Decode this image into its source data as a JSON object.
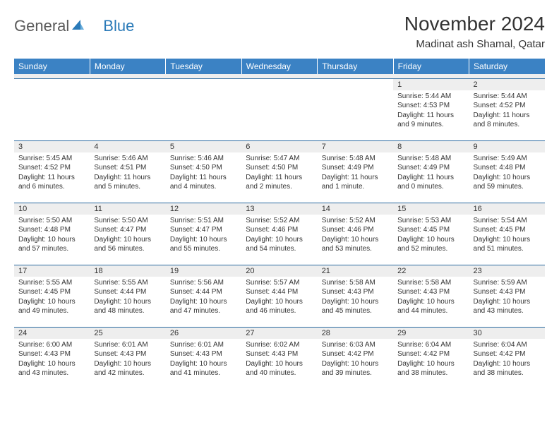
{
  "brand": {
    "word1": "General",
    "word2": "Blue",
    "word1_color": "#5a5a5a",
    "word2_color": "#2a7ab8",
    "icon_color": "#2a7ab8"
  },
  "title": {
    "month_year": "November 2024",
    "location": "Madinat ash Shamal, Qatar"
  },
  "colors": {
    "header_bg": "#3b82c4",
    "header_text": "#ffffff",
    "daynum_bg": "#eeeeee",
    "text": "#333333",
    "row_border": "#2a6aa0"
  },
  "day_headers": [
    "Sunday",
    "Monday",
    "Tuesday",
    "Wednesday",
    "Thursday",
    "Friday",
    "Saturday"
  ],
  "weeks": [
    [
      {
        "num": "",
        "lines": []
      },
      {
        "num": "",
        "lines": []
      },
      {
        "num": "",
        "lines": []
      },
      {
        "num": "",
        "lines": []
      },
      {
        "num": "",
        "lines": []
      },
      {
        "num": "1",
        "lines": [
          "Sunrise: 5:44 AM",
          "Sunset: 4:53 PM",
          "Daylight: 11 hours and 9 minutes."
        ]
      },
      {
        "num": "2",
        "lines": [
          "Sunrise: 5:44 AM",
          "Sunset: 4:52 PM",
          "Daylight: 11 hours and 8 minutes."
        ]
      }
    ],
    [
      {
        "num": "3",
        "lines": [
          "Sunrise: 5:45 AM",
          "Sunset: 4:52 PM",
          "Daylight: 11 hours and 6 minutes."
        ]
      },
      {
        "num": "4",
        "lines": [
          "Sunrise: 5:46 AM",
          "Sunset: 4:51 PM",
          "Daylight: 11 hours and 5 minutes."
        ]
      },
      {
        "num": "5",
        "lines": [
          "Sunrise: 5:46 AM",
          "Sunset: 4:50 PM",
          "Daylight: 11 hours and 4 minutes."
        ]
      },
      {
        "num": "6",
        "lines": [
          "Sunrise: 5:47 AM",
          "Sunset: 4:50 PM",
          "Daylight: 11 hours and 2 minutes."
        ]
      },
      {
        "num": "7",
        "lines": [
          "Sunrise: 5:48 AM",
          "Sunset: 4:49 PM",
          "Daylight: 11 hours and 1 minute."
        ]
      },
      {
        "num": "8",
        "lines": [
          "Sunrise: 5:48 AM",
          "Sunset: 4:49 PM",
          "Daylight: 11 hours and 0 minutes."
        ]
      },
      {
        "num": "9",
        "lines": [
          "Sunrise: 5:49 AM",
          "Sunset: 4:48 PM",
          "Daylight: 10 hours and 59 minutes."
        ]
      }
    ],
    [
      {
        "num": "10",
        "lines": [
          "Sunrise: 5:50 AM",
          "Sunset: 4:48 PM",
          "Daylight: 10 hours and 57 minutes."
        ]
      },
      {
        "num": "11",
        "lines": [
          "Sunrise: 5:50 AM",
          "Sunset: 4:47 PM",
          "Daylight: 10 hours and 56 minutes."
        ]
      },
      {
        "num": "12",
        "lines": [
          "Sunrise: 5:51 AM",
          "Sunset: 4:47 PM",
          "Daylight: 10 hours and 55 minutes."
        ]
      },
      {
        "num": "13",
        "lines": [
          "Sunrise: 5:52 AM",
          "Sunset: 4:46 PM",
          "Daylight: 10 hours and 54 minutes."
        ]
      },
      {
        "num": "14",
        "lines": [
          "Sunrise: 5:52 AM",
          "Sunset: 4:46 PM",
          "Daylight: 10 hours and 53 minutes."
        ]
      },
      {
        "num": "15",
        "lines": [
          "Sunrise: 5:53 AM",
          "Sunset: 4:45 PM",
          "Daylight: 10 hours and 52 minutes."
        ]
      },
      {
        "num": "16",
        "lines": [
          "Sunrise: 5:54 AM",
          "Sunset: 4:45 PM",
          "Daylight: 10 hours and 51 minutes."
        ]
      }
    ],
    [
      {
        "num": "17",
        "lines": [
          "Sunrise: 5:55 AM",
          "Sunset: 4:45 PM",
          "Daylight: 10 hours and 49 minutes."
        ]
      },
      {
        "num": "18",
        "lines": [
          "Sunrise: 5:55 AM",
          "Sunset: 4:44 PM",
          "Daylight: 10 hours and 48 minutes."
        ]
      },
      {
        "num": "19",
        "lines": [
          "Sunrise: 5:56 AM",
          "Sunset: 4:44 PM",
          "Daylight: 10 hours and 47 minutes."
        ]
      },
      {
        "num": "20",
        "lines": [
          "Sunrise: 5:57 AM",
          "Sunset: 4:44 PM",
          "Daylight: 10 hours and 46 minutes."
        ]
      },
      {
        "num": "21",
        "lines": [
          "Sunrise: 5:58 AM",
          "Sunset: 4:43 PM",
          "Daylight: 10 hours and 45 minutes."
        ]
      },
      {
        "num": "22",
        "lines": [
          "Sunrise: 5:58 AM",
          "Sunset: 4:43 PM",
          "Daylight: 10 hours and 44 minutes."
        ]
      },
      {
        "num": "23",
        "lines": [
          "Sunrise: 5:59 AM",
          "Sunset: 4:43 PM",
          "Daylight: 10 hours and 43 minutes."
        ]
      }
    ],
    [
      {
        "num": "24",
        "lines": [
          "Sunrise: 6:00 AM",
          "Sunset: 4:43 PM",
          "Daylight: 10 hours and 43 minutes."
        ]
      },
      {
        "num": "25",
        "lines": [
          "Sunrise: 6:01 AM",
          "Sunset: 4:43 PM",
          "Daylight: 10 hours and 42 minutes."
        ]
      },
      {
        "num": "26",
        "lines": [
          "Sunrise: 6:01 AM",
          "Sunset: 4:43 PM",
          "Daylight: 10 hours and 41 minutes."
        ]
      },
      {
        "num": "27",
        "lines": [
          "Sunrise: 6:02 AM",
          "Sunset: 4:43 PM",
          "Daylight: 10 hours and 40 minutes."
        ]
      },
      {
        "num": "28",
        "lines": [
          "Sunrise: 6:03 AM",
          "Sunset: 4:42 PM",
          "Daylight: 10 hours and 39 minutes."
        ]
      },
      {
        "num": "29",
        "lines": [
          "Sunrise: 6:04 AM",
          "Sunset: 4:42 PM",
          "Daylight: 10 hours and 38 minutes."
        ]
      },
      {
        "num": "30",
        "lines": [
          "Sunrise: 6:04 AM",
          "Sunset: 4:42 PM",
          "Daylight: 10 hours and 38 minutes."
        ]
      }
    ]
  ]
}
